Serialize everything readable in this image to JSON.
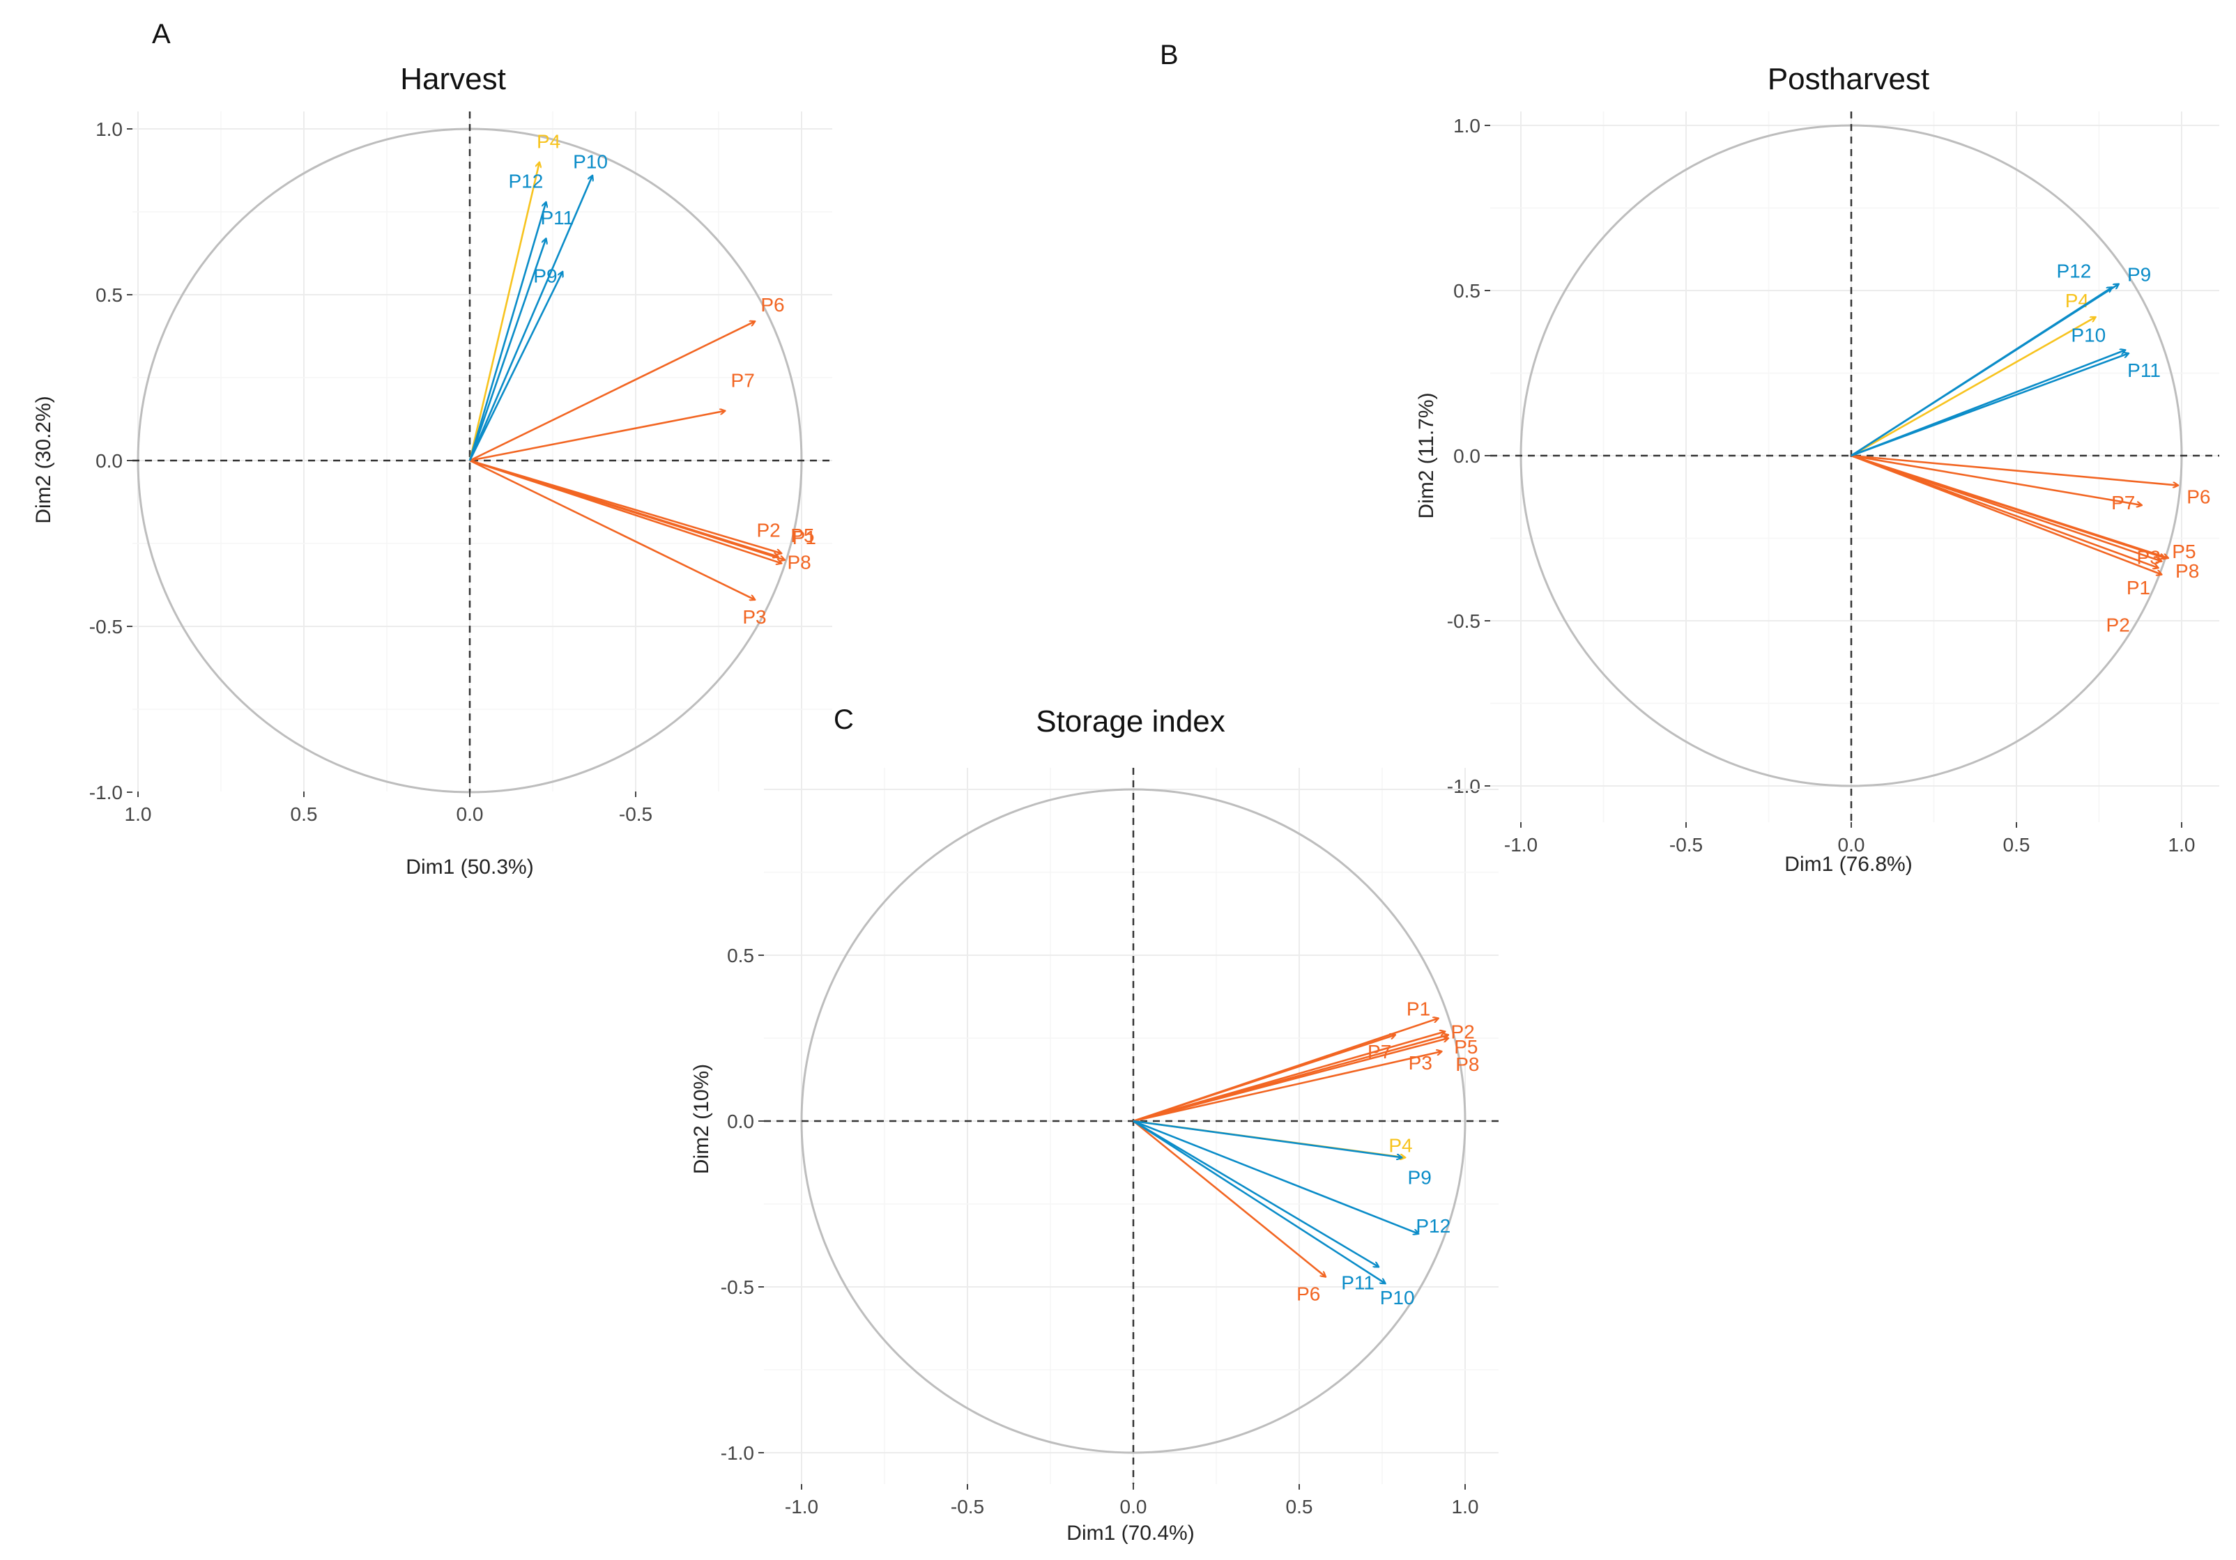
{
  "colors": {
    "orange": "#f26522",
    "blue": "#0a8cc8",
    "yellow": "#f7c31e"
  },
  "chart_data": [
    {
      "type": "scatter",
      "panel": "A",
      "title": "Harvest",
      "xlabel": "Dim1 (50.3%)",
      "ylabel": "Dim2 (30.2%)",
      "xlim": [
        1.0,
        -1.1
      ],
      "ylim": [
        -1.0,
        1.0
      ],
      "x_ticks": [
        "1.0",
        "0.5",
        "0.0",
        "-0.5"
      ],
      "x_tick_values": [
        1.0,
        0.5,
        0.0,
        -0.5
      ],
      "y_ticks": [
        "1.0",
        "0.5",
        "0.0",
        "-0.5",
        "-1.0"
      ],
      "y_tick_values": [
        1.0,
        0.5,
        0.0,
        -0.5,
        -1.0
      ],
      "vectors": [
        {
          "name": "P1",
          "x": -0.93,
          "y": -0.29,
          "color": "orange"
        },
        {
          "name": "P2",
          "x": -0.94,
          "y": -0.28,
          "color": "orange"
        },
        {
          "name": "P3",
          "x": -0.86,
          "y": -0.42,
          "color": "orange"
        },
        {
          "name": "P4",
          "x": -0.21,
          "y": 0.9,
          "color": "yellow"
        },
        {
          "name": "P5",
          "x": -0.95,
          "y": -0.3,
          "color": "orange"
        },
        {
          "name": "P6",
          "x": -0.86,
          "y": 0.42,
          "color": "orange"
        },
        {
          "name": "P7",
          "x": -0.77,
          "y": 0.15,
          "color": "orange"
        },
        {
          "name": "P8",
          "x": -0.94,
          "y": -0.31,
          "color": "orange"
        },
        {
          "name": "P9",
          "x": -0.28,
          "y": 0.57,
          "color": "blue"
        },
        {
          "name": "P10",
          "x": -0.37,
          "y": 0.86,
          "color": "blue"
        },
        {
          "name": "P11",
          "x": -0.23,
          "y": 0.67,
          "color": "blue"
        },
        {
          "name": "P12",
          "x": -0.23,
          "y": 0.78,
          "color": "blue"
        }
      ]
    },
    {
      "type": "scatter",
      "panel": "B",
      "title": "Postharvest",
      "xlabel": "Dim1 (76.8%)",
      "ylabel": "Dim2 (11.7%)",
      "xlim": [
        -1.1,
        1.1
      ],
      "ylim": [
        -1.05,
        1.1
      ],
      "x_ticks": [
        "-1.0",
        "-0.5",
        "0.0",
        "0.5",
        "1.0"
      ],
      "x_tick_values": [
        -1.0,
        -0.5,
        0.0,
        0.5,
        1.0
      ],
      "y_ticks": [
        "1.0",
        "0.5",
        "0.0",
        "-0.5",
        "-1.0"
      ],
      "y_tick_values": [
        1.0,
        0.5,
        0.0,
        -0.5,
        -1.0
      ],
      "vectors": [
        {
          "name": "P1",
          "x": 0.93,
          "y": -0.34,
          "color": "orange"
        },
        {
          "name": "P2",
          "x": 0.94,
          "y": -0.36,
          "color": "orange"
        },
        {
          "name": "P3",
          "x": 0.94,
          "y": -0.32,
          "color": "orange"
        },
        {
          "name": "P4",
          "x": 0.74,
          "y": 0.42,
          "color": "yellow"
        },
        {
          "name": "P5",
          "x": 0.95,
          "y": -0.31,
          "color": "orange"
        },
        {
          "name": "P6",
          "x": 0.99,
          "y": -0.09,
          "color": "orange"
        },
        {
          "name": "P7",
          "x": 0.88,
          "y": -0.15,
          "color": "orange"
        },
        {
          "name": "P8",
          "x": 0.96,
          "y": -0.31,
          "color": "orange"
        },
        {
          "name": "P9",
          "x": 0.81,
          "y": 0.52,
          "color": "blue"
        },
        {
          "name": "P10",
          "x": 0.83,
          "y": 0.32,
          "color": "blue"
        },
        {
          "name": "P11",
          "x": 0.84,
          "y": 0.31,
          "color": "blue"
        },
        {
          "name": "P12",
          "x": 0.79,
          "y": 0.51,
          "color": "blue"
        }
      ]
    },
    {
      "type": "scatter",
      "panel": "C",
      "title": "Storage index",
      "xlabel": "Dim1 (70.4%)",
      "ylabel": "Dim2 (10%)",
      "xlim": [
        -1.1,
        1.1
      ],
      "ylim": [
        -1.05,
        0.68
      ],
      "x_ticks": [
        "-1.0",
        "-0.5",
        "0.0",
        "0.5",
        "1.0"
      ],
      "x_tick_values": [
        -1.0,
        -0.5,
        0.0,
        0.5,
        1.0
      ],
      "y_ticks": [
        "0.5",
        "0.0",
        "-0.5",
        "-1.0"
      ],
      "y_tick_values": [
        0.5,
        0.0,
        -0.5,
        -1.0
      ],
      "vectors": [
        {
          "name": "P1",
          "x": 0.92,
          "y": 0.31,
          "color": "orange"
        },
        {
          "name": "P2",
          "x": 0.94,
          "y": 0.27,
          "color": "orange"
        },
        {
          "name": "P3",
          "x": 0.93,
          "y": 0.21,
          "color": "orange"
        },
        {
          "name": "P4",
          "x": 0.82,
          "y": -0.11,
          "color": "yellow"
        },
        {
          "name": "P5",
          "x": 0.95,
          "y": 0.25,
          "color": "orange"
        },
        {
          "name": "P6",
          "x": 0.58,
          "y": -0.47,
          "color": "orange"
        },
        {
          "name": "P7",
          "x": 0.79,
          "y": 0.26,
          "color": "orange"
        },
        {
          "name": "P8",
          "x": 0.95,
          "y": 0.26,
          "color": "orange"
        },
        {
          "name": "P9",
          "x": 0.81,
          "y": -0.11,
          "color": "blue"
        },
        {
          "name": "P10",
          "x": 0.76,
          "y": -0.49,
          "color": "blue"
        },
        {
          "name": "P11",
          "x": 0.74,
          "y": -0.44,
          "color": "blue"
        },
        {
          "name": "P12",
          "x": 0.86,
          "y": -0.34,
          "color": "blue"
        }
      ]
    }
  ]
}
